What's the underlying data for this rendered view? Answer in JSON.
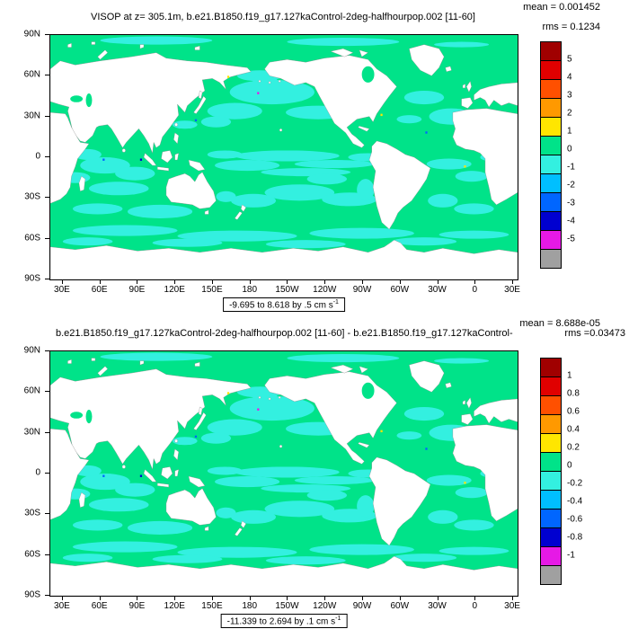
{
  "colors": {
    "background": "#ffffff",
    "ocean_green": "#00e389",
    "ocean_cyan": "#33f0e0",
    "land": "#ffffff",
    "frame": "#000000",
    "colorbar": [
      "#a00000",
      "#e00000",
      "#ff5000",
      "#ff9900",
      "#ffe600",
      "#00e389",
      "#33f0e0",
      "#00bfff",
      "#0066ff",
      "#0000d0",
      "#e619e6",
      "#a0a0a0"
    ]
  },
  "axes": {
    "lat_ticks": [
      "90N",
      "60N",
      "30N",
      "0",
      "30S",
      "60S",
      "90S"
    ],
    "lon_ticks": [
      "30E",
      "60E",
      "90E",
      "120E",
      "150E",
      "180",
      "150W",
      "120W",
      "90W",
      "60W",
      "30W",
      "0",
      "30E"
    ]
  },
  "panels": [
    {
      "mean": "mean = 0.001452",
      "rms": "rms = 0.1234",
      "title": "VISOP at z= 305.1m, b.e21.B1850.f19_g17.127kaControl-2deg-halfhourpop.002 [11-60]",
      "range_text": "-9.695 to 8.618 by .5 cm s",
      "range_sup": "-1",
      "colorbar_labels": [
        "5",
        "4",
        "3",
        "2",
        "1",
        "0",
        "-1",
        "-2",
        "-3",
        "-4",
        "-5"
      ]
    },
    {
      "mean": "mean = 8.688e-05",
      "rms": "rms =0.03473",
      "title": "b.e21.B1850.f19_g17.127kaControl-2deg-halfhourpop.002 [11-60] - b.e21.B1850.f19_g17.127kaControl-",
      "range_text": "-11.339 to 2.694 by .1 cm s",
      "range_sup": "-1",
      "colorbar_labels": [
        "1",
        "0.8",
        "0.6",
        "0.4",
        "0.2",
        "0",
        "-0.2",
        "-0.4",
        "-0.6",
        "-0.8",
        "-1"
      ]
    }
  ],
  "chart_data": [
    {
      "type": "heatmap",
      "subtype": "filled-contour global latitude-longitude map, Pacific-centered, land masked white",
      "title": "VISOP at z= 305.1m, b.e21.B1850.f19_g17.127kaControl-2deg-halfhourpop.002 [11-60]",
      "stats": {
        "mean": 0.001452,
        "rms": 0.1234
      },
      "data_range": {
        "min": -9.695,
        "max": 8.618,
        "contour_interval": 0.5,
        "units": "cm s-1"
      },
      "colorbar": {
        "levels": [
          5,
          4,
          3,
          2,
          1,
          0,
          -1,
          -2,
          -3,
          -4,
          -5
        ],
        "position": "right"
      },
      "x_ticks": [
        "30E",
        "60E",
        "90E",
        "120E",
        "150E",
        "180",
        "150W",
        "120W",
        "90W",
        "60W",
        "30W",
        "0",
        "30E"
      ],
      "y_ticks": [
        "90N",
        "60N",
        "30N",
        "0",
        "30S",
        "60S",
        "90S"
      ],
      "dominant_values": "ocean mostly between -1 and 1: green patches 0..1, cyan patches -1..0; scattered extreme specks near coasts"
    },
    {
      "type": "heatmap",
      "subtype": "filled-contour global latitude-longitude map (difference plot), Pacific-centered, land masked white",
      "title": "b.e21.B1850.f19_g17.127kaControl-2deg-halfhourpop.002 [11-60] - b.e21.B1850.f19_g17.127kaControl-",
      "stats": {
        "mean": 8.688e-05,
        "rms": 0.03473
      },
      "data_range": {
        "min": -11.339,
        "max": 2.694,
        "contour_interval": 0.1,
        "units": "cm s-1"
      },
      "colorbar": {
        "levels": [
          1,
          0.8,
          0.6,
          0.4,
          0.2,
          0,
          -0.2,
          -0.4,
          -0.6,
          -0.8,
          -1
        ],
        "position": "right"
      },
      "x_ticks": [
        "30E",
        "60E",
        "90E",
        "120E",
        "150E",
        "180",
        "150W",
        "120W",
        "90W",
        "60W",
        "30W",
        "0",
        "30E"
      ],
      "y_ticks": [
        "90N",
        "60N",
        "30N",
        "0",
        "30S",
        "60S",
        "90S"
      ],
      "dominant_values": "ocean mostly between -0.2 and 0.2: green patches 0..0.2, cyan patches -0.2..0"
    }
  ]
}
